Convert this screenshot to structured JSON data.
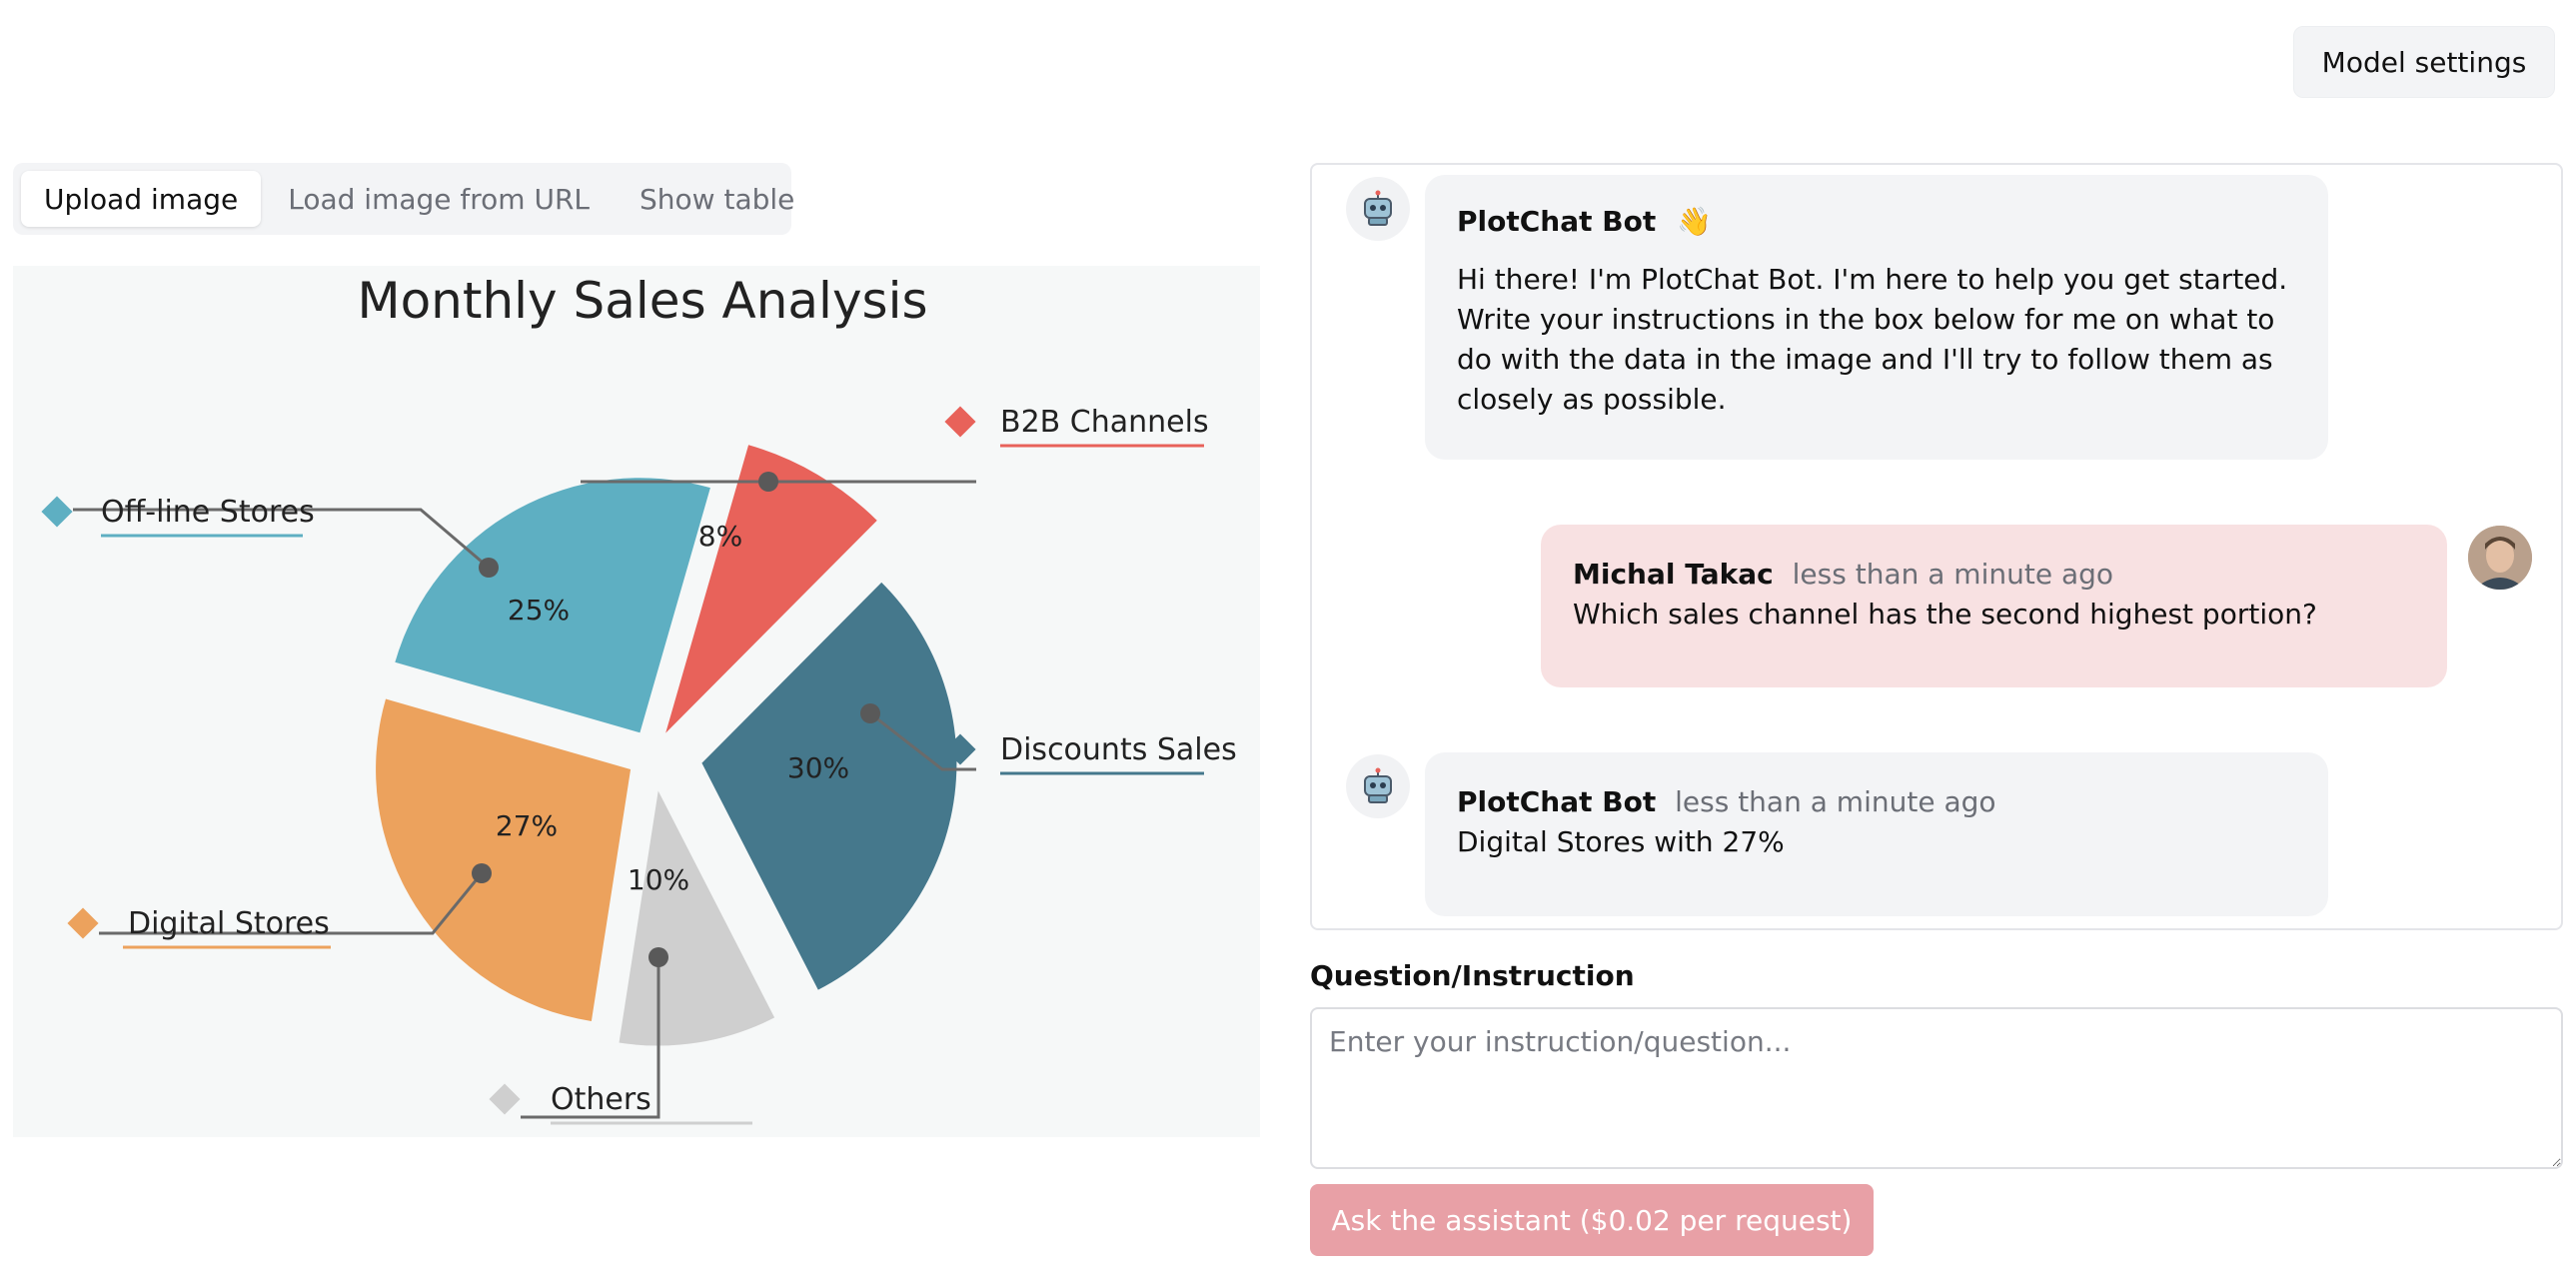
{
  "header": {
    "model_settings_label": "Model settings"
  },
  "tabs": [
    {
      "label": "Upload image",
      "active": true
    },
    {
      "label": "Load image from URL",
      "active": false
    },
    {
      "label": "Show table",
      "active": false
    }
  ],
  "chart_data": {
    "type": "pie",
    "title": "Monthly Sales Analysis",
    "slices": [
      {
        "label": "B2B Channels",
        "value": 8,
        "pct_label": "8%",
        "color": "#e8625a"
      },
      {
        "label": "Discounts Sales",
        "value": 30,
        "pct_label": "30%",
        "color": "#45788c"
      },
      {
        "label": "Others",
        "value": 10,
        "pct_label": "10%",
        "color": "#cfcfcf"
      },
      {
        "label": "Digital Stores",
        "value": 27,
        "pct_label": "27%",
        "color": "#eca25d"
      },
      {
        "label": "Off-line Stores",
        "value": 25,
        "pct_label": "25%",
        "color": "#5eafc2"
      }
    ],
    "legend_placement": "labels beside slices"
  },
  "chat": {
    "messages": [
      {
        "sender": "PlotChat Bot",
        "emoji": "👋",
        "time": "",
        "text": "Hi there! I'm PlotChat Bot. I'm here to help you get started. Write your instructions in the box below for me on what to do with the data in the image and I'll try to follow them as closely as possible."
      },
      {
        "sender": "Michal Takac",
        "time": "less than a minute ago",
        "text": "Which sales channel has the second highest portion?"
      },
      {
        "sender": "PlotChat Bot",
        "time": "less than a minute ago",
        "text": "Digital Stores with 27%"
      }
    ]
  },
  "question": {
    "label": "Question/Instruction",
    "placeholder": "Enter your instruction/question...",
    "value": ""
  },
  "ask_button": {
    "label": "Ask the assistant ($0.02 per request)"
  },
  "colors": {
    "accent_button": "#e8a0a6",
    "user_bubble": "#f8e1e2",
    "bot_bubble": "#f3f4f6"
  }
}
